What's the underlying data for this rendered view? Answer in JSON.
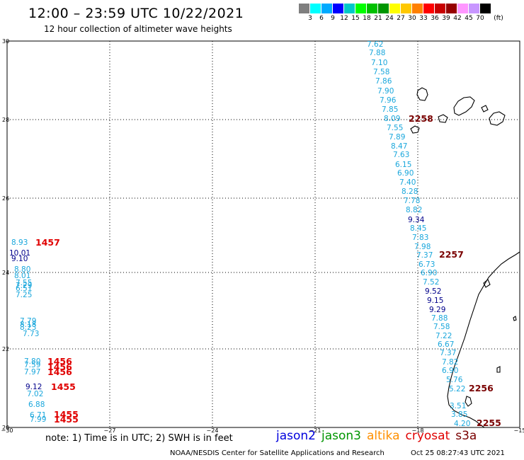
{
  "title": "12:00 – 23:59 UTC 10/22/2021",
  "subtitle": "12 hour collection of altimeter wave heights",
  "legend": {
    "unit": "(ft)",
    "colors": [
      "#7f7f7f",
      "#00ffff",
      "#00aaff",
      "#0000ff",
      "#00c8c8",
      "#00ff00",
      "#00c000",
      "#009600",
      "#ffff00",
      "#ffc800",
      "#ff8000",
      "#ff0000",
      "#c80000",
      "#960000",
      "#ff96ff",
      "#c896ff",
      "#000000"
    ],
    "labels": [
      "3",
      "6",
      "9",
      "12",
      "15",
      "18",
      "21",
      "24",
      "27",
      "30",
      "33",
      "36",
      "39",
      "42",
      "45",
      "70"
    ]
  },
  "axes": {
    "x_ticks": [
      "−30",
      "−27",
      "−24",
      "−21",
      "−18",
      "−15"
    ],
    "y_ticks": [
      "30",
      "28",
      "26",
      "24",
      "22",
      "20"
    ]
  },
  "observations": [
    {
      "t": "7.62",
      "c": "#1aa7dc"
    },
    {
      "t": "7.88",
      "c": "#1aa7dc"
    },
    {
      "t": "7.10",
      "c": "#1aa7dc"
    },
    {
      "t": "7.58",
      "c": "#1aa7dc"
    },
    {
      "t": "7.86",
      "c": "#1aa7dc"
    },
    {
      "t": "7.90",
      "c": "#1aa7dc"
    },
    {
      "t": "7.96",
      "c": "#1aa7dc"
    },
    {
      "t": "7.85",
      "c": "#1aa7dc"
    },
    {
      "t": "8.09",
      "c": "#1aa7dc"
    },
    {
      "t": "7.55",
      "c": "#1aa7dc"
    },
    {
      "t": "7.89",
      "c": "#1aa7dc"
    },
    {
      "t": "8.47",
      "c": "#1aa7dc"
    },
    {
      "t": "7.63",
      "c": "#1aa7dc"
    },
    {
      "t": "6.15",
      "c": "#1aa7dc"
    },
    {
      "t": "6.90",
      "c": "#1aa7dc"
    },
    {
      "t": "7.40",
      "c": "#1aa7dc"
    },
    {
      "t": "8.28",
      "c": "#1aa7dc"
    },
    {
      "t": "7.78",
      "c": "#1aa7dc"
    },
    {
      "t": "8.82",
      "c": "#1aa7dc"
    },
    {
      "t": "9.34",
      "c": "#00008b"
    },
    {
      "t": "8.45",
      "c": "#1aa7dc"
    },
    {
      "t": "7.83",
      "c": "#1aa7dc"
    },
    {
      "t": "7.98",
      "c": "#1aa7dc"
    },
    {
      "t": "7.37",
      "c": "#1aa7dc"
    },
    {
      "t": "6.73",
      "c": "#1aa7dc"
    },
    {
      "t": "6.90",
      "c": "#1aa7dc"
    },
    {
      "t": "7.52",
      "c": "#1aa7dc"
    },
    {
      "t": "9.52",
      "c": "#00008b"
    },
    {
      "t": "9.15",
      "c": "#00008b"
    },
    {
      "t": "9.29",
      "c": "#00008b"
    },
    {
      "t": "7.88",
      "c": "#1aa7dc"
    },
    {
      "t": "7.58",
      "c": "#1aa7dc"
    },
    {
      "t": "7.22",
      "c": "#1aa7dc"
    },
    {
      "t": "6.67",
      "c": "#1aa7dc"
    },
    {
      "t": "7.37",
      "c": "#1aa7dc"
    },
    {
      "t": "7.82",
      "c": "#1aa7dc"
    },
    {
      "t": "6.90",
      "c": "#1aa7dc"
    },
    {
      "t": "5.76",
      "c": "#1aa7dc"
    },
    {
      "t": "5.22",
      "c": "#1aa7dc"
    },
    {
      "t": "3.51",
      "c": "#1aa7dc"
    },
    {
      "t": "3.85",
      "c": "#1aa7dc"
    },
    {
      "t": "4.20",
      "c": "#1aa7dc"
    },
    {
      "t": "8.93",
      "c": "#1aa7dc"
    },
    {
      "t": "10.01",
      "c": "#00008b"
    },
    {
      "t": "9.10",
      "c": "#00008b"
    },
    {
      "t": "8.80",
      "c": "#1aa7dc"
    },
    {
      "t": "8.01",
      "c": "#1aa7dc"
    },
    {
      "t": "7.55",
      "c": "#1aa7dc"
    },
    {
      "t": "7.29",
      "c": "#1aa7dc"
    },
    {
      "t": "6.51",
      "c": "#1aa7dc"
    },
    {
      "t": "7.25",
      "c": "#1aa7dc"
    },
    {
      "t": "7.79",
      "c": "#1aa7dc"
    },
    {
      "t": "8.18",
      "c": "#1aa7dc"
    },
    {
      "t": "8.23",
      "c": "#1aa7dc"
    },
    {
      "t": "7.73",
      "c": "#1aa7dc"
    },
    {
      "t": "7.80",
      "c": "#1aa7dc"
    },
    {
      "t": "7.59",
      "c": "#1aa7dc"
    },
    {
      "t": "7.97",
      "c": "#1aa7dc"
    },
    {
      "t": "9.12",
      "c": "#00008b"
    },
    {
      "t": "7.02",
      "c": "#1aa7dc"
    },
    {
      "t": "6.88",
      "c": "#1aa7dc"
    },
    {
      "t": "6.71",
      "c": "#1aa7dc"
    },
    {
      "t": "7.99",
      "c": "#1aa7dc"
    }
  ],
  "time_labels": [
    {
      "t": "2258",
      "c": "#7a0000"
    },
    {
      "t": "2257",
      "c": "#7a0000"
    },
    {
      "t": "2256",
      "c": "#7a0000"
    },
    {
      "t": "2255",
      "c": "#7a0000"
    },
    {
      "t": "1457",
      "c": "#e00000"
    },
    {
      "t": "1456",
      "c": "#e00000"
    },
    {
      "t": "1456",
      "c": "#e00000"
    },
    {
      "t": "1456",
      "c": "#e00000"
    },
    {
      "t": "1455",
      "c": "#e00000"
    },
    {
      "t": "1455",
      "c": "#e00000"
    },
    {
      "t": "1455",
      "c": "#e00000"
    }
  ],
  "note": "note:  1) Time is in UTC;  2) SWH is in feet",
  "satellites": [
    {
      "name": "jason2",
      "color": "#0000dd"
    },
    {
      "name": "jason3",
      "color": "#009600"
    },
    {
      "name": "altika",
      "color": "#ff9000"
    },
    {
      "name": "cryosat",
      "color": "#e00000"
    },
    {
      "name": "s3a",
      "color": "#7a0000"
    }
  ],
  "credit": "NOAA/NESDIS Center for Satellite Applications and Research",
  "timestamp": "Oct 25 08:27:43 UTC 2021"
}
